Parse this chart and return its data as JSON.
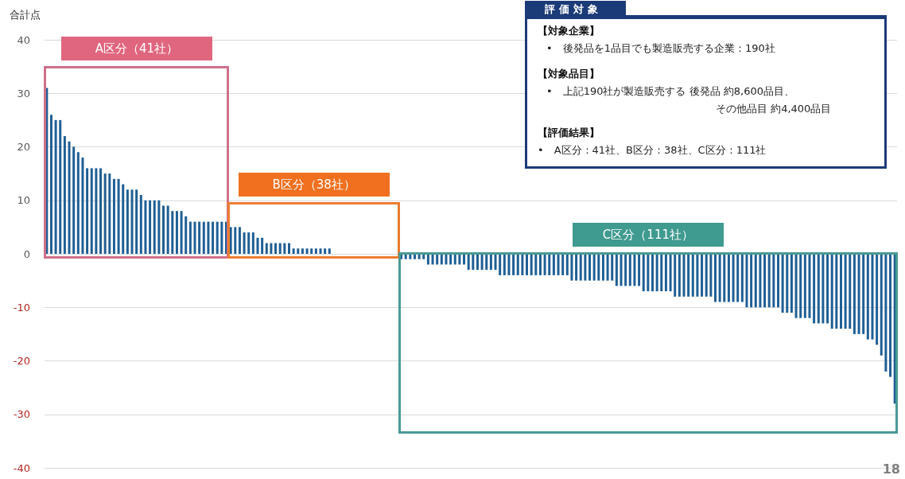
{
  "chart_data": {
    "type": "bar",
    "ylabel": "合計点",
    "categories": [
      null,
      null,
      null,
      null,
      null,
      null,
      null,
      null,
      null,
      null,
      null,
      null,
      null,
      null,
      null,
      null,
      null,
      null,
      null,
      null,
      null,
      null,
      null,
      null,
      null,
      null,
      null,
      null,
      null,
      null,
      null,
      null,
      null,
      null,
      null,
      null,
      null,
      null,
      null,
      null,
      null,
      null,
      null,
      null,
      null,
      null,
      null,
      null,
      null,
      null,
      null,
      null,
      null,
      null,
      null,
      null,
      null,
      null,
      null,
      null,
      null,
      null,
      null,
      null,
      null,
      null,
      null,
      null,
      null,
      null,
      null,
      null,
      null,
      null,
      null,
      null,
      null,
      null,
      null,
      null,
      null,
      null,
      null,
      null,
      null,
      null,
      null,
      null,
      null,
      null,
      null,
      null,
      null,
      null,
      null,
      null,
      null,
      null,
      null,
      null,
      null,
      null,
      null,
      null,
      null,
      null,
      null,
      null,
      null,
      null,
      null,
      null,
      null,
      null,
      null,
      null,
      null,
      null,
      null,
      null,
      null,
      null,
      null,
      null,
      null,
      null,
      null,
      null,
      null,
      null,
      null,
      null,
      null,
      null,
      null,
      null,
      null,
      null,
      null,
      null,
      null,
      null,
      null,
      null,
      null,
      null,
      null,
      null,
      null,
      null,
      null,
      null,
      null,
      null,
      null,
      null,
      null,
      null,
      null,
      null,
      null,
      null,
      null,
      null,
      null,
      null,
      null,
      null,
      null,
      null,
      null,
      null,
      null,
      null,
      null,
      null,
      null,
      null,
      null,
      null,
      null,
      null,
      null,
      null,
      null,
      null,
      null,
      null,
      null,
      null
    ],
    "series": [
      {
        "color": "#1f5f95",
        "values": [
          31,
          26,
          25,
          25,
          22,
          21,
          20,
          19,
          18,
          16,
          16,
          16,
          16,
          15,
          15,
          14,
          14,
          13,
          12,
          12,
          12,
          11,
          10,
          10,
          10,
          10,
          9,
          9,
          8,
          8,
          8,
          7,
          6,
          6,
          6,
          6,
          6,
          6,
          6,
          6,
          6,
          null,
          null,
          null,
          null,
          null,
          null,
          null,
          null,
          null,
          null,
          null,
          null,
          null,
          null,
          null,
          null,
          null,
          null,
          null,
          null,
          null,
          null,
          null,
          null,
          null,
          null,
          null,
          null,
          null,
          null,
          null,
          null,
          null,
          null,
          null,
          null,
          null,
          null,
          null,
          null,
          null,
          null,
          null,
          null,
          null,
          null,
          null,
          null,
          null,
          null,
          null,
          null,
          null,
          null,
          null,
          null,
          null,
          null,
          null,
          null,
          null,
          null,
          null,
          null,
          null,
          null,
          null,
          null,
          null,
          null,
          null,
          null,
          null,
          null,
          null,
          null,
          null,
          null,
          null,
          null,
          null,
          null,
          null,
          null,
          null,
          null,
          null,
          null,
          null,
          null,
          null,
          null,
          null,
          null,
          null,
          null,
          null,
          null,
          null,
          null,
          null,
          null,
          null,
          null,
          null,
          null,
          null,
          null,
          null,
          null,
          null,
          null,
          null,
          null,
          null,
          null,
          null,
          null,
          null,
          null,
          null,
          null,
          null,
          null,
          null,
          null,
          null,
          null,
          null,
          null,
          null,
          null,
          null,
          null,
          null,
          null,
          null,
          null,
          null,
          null,
          null,
          null,
          null,
          null,
          null,
          null,
          null,
          null,
          null
        ]
      },
      {
        "color": "#1f5f95",
        "values": [
          null,
          null,
          null,
          null,
          null,
          null,
          null,
          null,
          null,
          null,
          null,
          null,
          null,
          null,
          null,
          null,
          null,
          null,
          null,
          null,
          null,
          null,
          null,
          null,
          null,
          null,
          null,
          null,
          null,
          null,
          null,
          null,
          null,
          null,
          null,
          null,
          null,
          null,
          null,
          null,
          null,
          5,
          5,
          5,
          4,
          4,
          4,
          3,
          3,
          2,
          2,
          2,
          2,
          2,
          2,
          1,
          1,
          1,
          1,
          1,
          1,
          1,
          1,
          1,
          0,
          0,
          0,
          0,
          0,
          0,
          0,
          0,
          0,
          0,
          0,
          0,
          0,
          0,
          0,
          null,
          null,
          null,
          null,
          null,
          null,
          null,
          null,
          null,
          null,
          null,
          null,
          null,
          null,
          null,
          null,
          null,
          null,
          null,
          null,
          null,
          null,
          null,
          null,
          null,
          null,
          null,
          null,
          null,
          null,
          null,
          null,
          null,
          null,
          null,
          null,
          null,
          null,
          null,
          null,
          null,
          null,
          null,
          null,
          null,
          null,
          null,
          null,
          null,
          null,
          null,
          null,
          null,
          null,
          null,
          null,
          null,
          null,
          null,
          null,
          null,
          null,
          null,
          null,
          null,
          null,
          null,
          null,
          null,
          null,
          null,
          null,
          null,
          null,
          null,
          null,
          null,
          null,
          null,
          null,
          null,
          null,
          null,
          null,
          null,
          null,
          null,
          null,
          null,
          null,
          null,
          null,
          null,
          null,
          null,
          null,
          null,
          null,
          null,
          null,
          null,
          null,
          null,
          null,
          null,
          null,
          null,
          null,
          null,
          null,
          null
        ]
      },
      {
        "color": "#1f5f95",
        "values": [
          null,
          null,
          null,
          null,
          null,
          null,
          null,
          null,
          null,
          null,
          null,
          null,
          null,
          null,
          null,
          null,
          null,
          null,
          null,
          null,
          null,
          null,
          null,
          null,
          null,
          null,
          null,
          null,
          null,
          null,
          null,
          null,
          null,
          null,
          null,
          null,
          null,
          null,
          null,
          null,
          null,
          null,
          null,
          null,
          null,
          null,
          null,
          null,
          null,
          null,
          null,
          null,
          null,
          null,
          null,
          null,
          null,
          null,
          null,
          null,
          null,
          null,
          null,
          null,
          null,
          null,
          null,
          null,
          null,
          null,
          null,
          null,
          null,
          null,
          null,
          null,
          null,
          null,
          null,
          -1,
          -1,
          -1,
          -1,
          -1,
          -1,
          -2,
          -2,
          -2,
          -2,
          -2,
          -2,
          -2,
          -2,
          -2,
          -3,
          -3,
          -3,
          -3,
          -3,
          -3,
          -3,
          -4,
          -4,
          -4,
          -4,
          -4,
          -4,
          -4,
          -4,
          -4,
          -4,
          -4,
          -4,
          -4,
          -4,
          -4,
          -4,
          -5,
          -5,
          -5,
          -5,
          -5,
          -5,
          -5,
          -5,
          -5,
          -5,
          -6,
          -6,
          -6,
          -6,
          -6,
          -6,
          -7,
          -7,
          -7,
          -7,
          -7,
          -7,
          -7,
          -8,
          -8,
          -8,
          -8,
          -8,
          -8,
          -8,
          -8,
          -8,
          -9,
          -9,
          -9,
          -9,
          -9,
          -9,
          -9,
          -10,
          -10,
          -10,
          -10,
          -10,
          -10,
          -10,
          -10,
          -11,
          -11,
          -11,
          -12,
          -12,
          -12,
          -12,
          -13,
          -13,
          -13,
          -13,
          -14,
          -14,
          -14,
          -14,
          -14,
          -15,
          -15,
          -15,
          -16,
          -16,
          -17,
          -19,
          -22,
          -23,
          -28
        ]
      }
    ],
    "ylim": [
      -40,
      40
    ],
    "yticks": [
      -40,
      -30,
      -20,
      -10,
      0,
      10,
      20,
      30,
      40
    ],
    "grid": "y",
    "tick_labels": "y",
    "annotations": [
      "A区分（41社）",
      "B区分（38社）",
      "C区分（111社）",
      "評価対象",
      "【対象企業】",
      "•　後発品を1品目でも製造販売する企業：190社",
      "【対象品目】",
      "•　上記190社が製造販売する 後発品 約8,600品目、",
      "その他品目 約4,400品目",
      "【評価結果】",
      "•　A区分：41社、B区分：38社、C区分：111社",
      "18"
    ]
  }
}
